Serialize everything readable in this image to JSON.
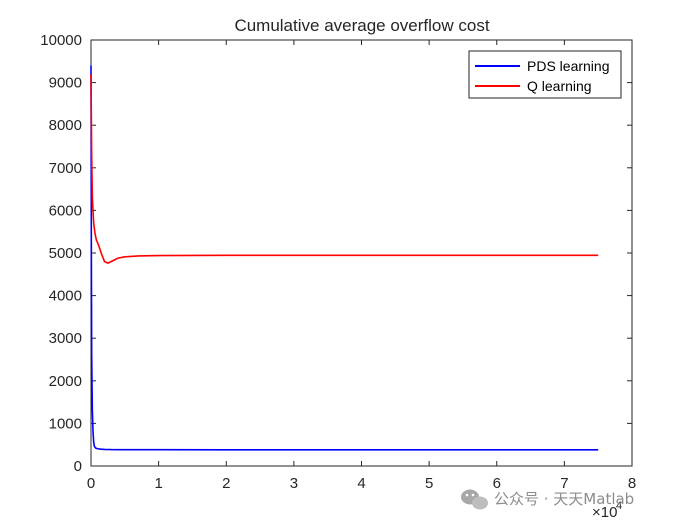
{
  "chart_data": {
    "type": "line",
    "title": "Cumulative average overflow cost",
    "xlabel": "",
    "ylabel": "",
    "xlim": [
      0,
      8
    ],
    "ylim": [
      0,
      10000
    ],
    "x_ticks": [
      0,
      1,
      2,
      3,
      4,
      5,
      6,
      7,
      8
    ],
    "y_ticks": [
      0,
      1000,
      2000,
      3000,
      4000,
      5000,
      6000,
      7000,
      8000,
      9000,
      10000
    ],
    "x_multiplier_base": "×10",
    "x_multiplier_exp": "4",
    "grid": false,
    "legend_position": "top-right",
    "series": [
      {
        "name": "PDS learning",
        "color": "#0000ff",
        "x": [
          0,
          0.005,
          0.01,
          0.02,
          0.03,
          0.04,
          0.05,
          0.07,
          0.1,
          0.15,
          0.2,
          0.3,
          0.5,
          1,
          2,
          3,
          5,
          7.5
        ],
        "y": [
          9400,
          5200,
          2600,
          1300,
          800,
          560,
          460,
          420,
          405,
          395,
          390,
          385,
          383,
          382,
          381,
          381,
          380,
          380
        ]
      },
      {
        "name": "Q learning",
        "color": "#ff0000",
        "x": [
          0,
          0.005,
          0.01,
          0.02,
          0.04,
          0.06,
          0.08,
          0.1,
          0.12,
          0.15,
          0.2,
          0.25,
          0.3,
          0.4,
          0.5,
          0.7,
          1,
          2,
          3,
          5,
          7.5
        ],
        "y": [
          9200,
          8200,
          7300,
          6300,
          5700,
          5450,
          5300,
          5230,
          5150,
          5000,
          4800,
          4760,
          4800,
          4880,
          4910,
          4930,
          4940,
          4945,
          4945,
          4945,
          4945
        ]
      }
    ]
  },
  "watermark": {
    "text": "公众号 · 天天Matlab",
    "icon": "wechat-icon"
  }
}
